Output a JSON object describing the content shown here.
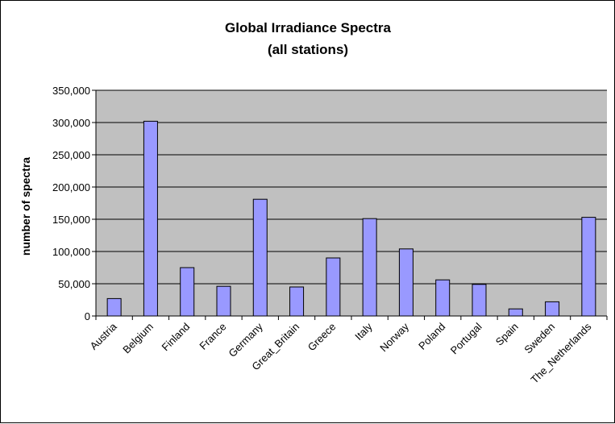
{
  "chart_data": {
    "type": "bar",
    "title": "Global Irradiance Spectra",
    "subtitle": "(all stations)",
    "xlabel": "",
    "ylabel": "number of spectra",
    "categories": [
      "Austria",
      "Belgium",
      "Finland",
      "France",
      "Germany",
      "Great_Britain",
      "Greece",
      "Italy",
      "Norway",
      "Poland",
      "Portugal",
      "Spain",
      "Sweden",
      "The_Netherlands"
    ],
    "values": [
      27000,
      302000,
      75000,
      46000,
      181000,
      45000,
      90000,
      151000,
      104000,
      56000,
      49000,
      11000,
      22000,
      153000
    ],
    "ylim": [
      0,
      350000
    ],
    "yticks": [
      "0",
      "50,000",
      "100,000",
      "150,000",
      "200,000",
      "250,000",
      "300,000",
      "350,000"
    ],
    "grid": true,
    "legend": "none",
    "colors": {
      "bar_fill": "#9999ff",
      "bar_stroke": "#000000",
      "plot_background": "#c0c0c0",
      "gridline": "#000000"
    }
  }
}
